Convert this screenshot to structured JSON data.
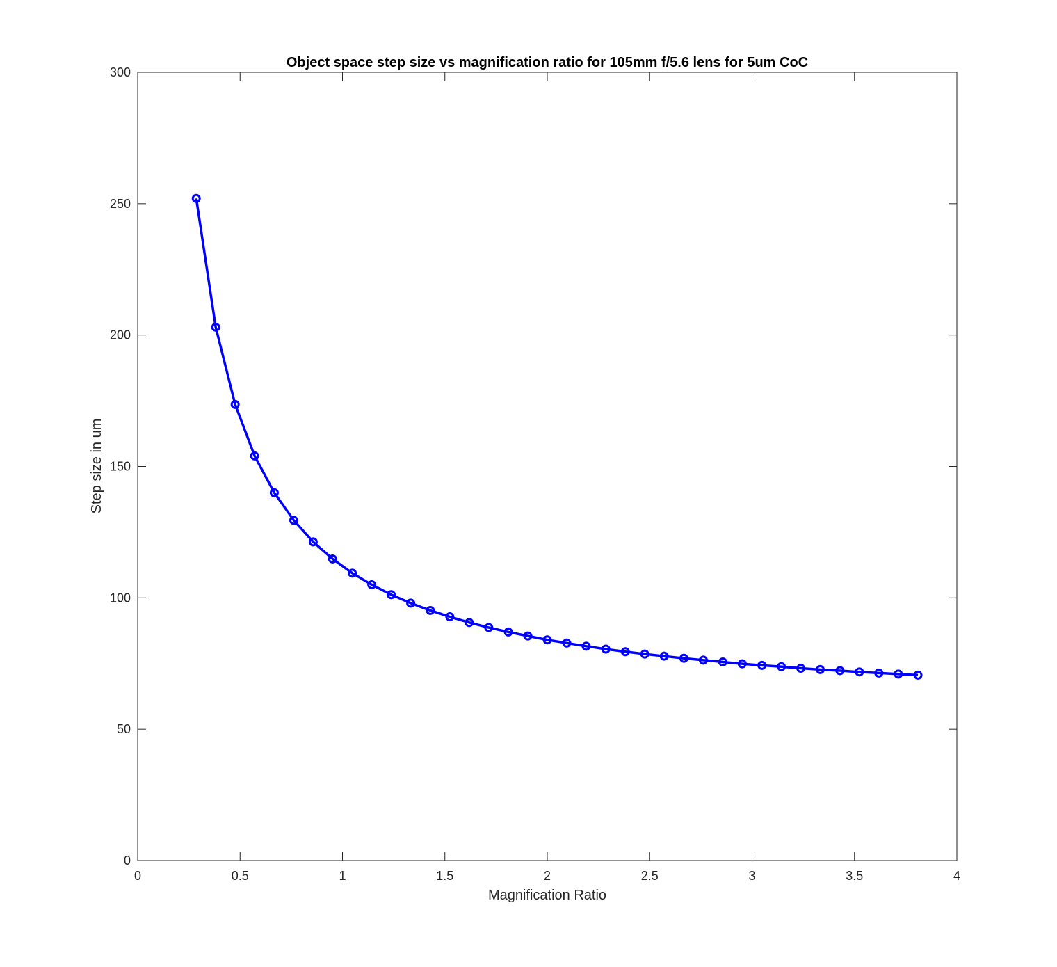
{
  "chart_data": {
    "type": "line",
    "title": "Object space step size vs magnification ratio for 105mm f/5.6 lens for 5um CoC",
    "xlabel": "Magnification Ratio",
    "ylabel": "Step size in um",
    "xlim": [
      0,
      4
    ],
    "ylim": [
      0,
      300
    ],
    "xticks": [
      0,
      0.5,
      1,
      1.5,
      2,
      2.5,
      3,
      3.5,
      4
    ],
    "xtick_labels": [
      "0",
      "0.5",
      "1",
      "1.5",
      "2",
      "2.5",
      "3",
      "3.5",
      "4"
    ],
    "yticks": [
      0,
      50,
      100,
      150,
      200,
      250,
      300
    ],
    "ytick_labels": [
      "0",
      "50",
      "100",
      "150",
      "200",
      "250",
      "300"
    ],
    "grid": false,
    "marker": "circle",
    "color": "#0000ff",
    "series": [
      {
        "x": [
          0.286,
          0.381,
          0.476,
          0.571,
          0.667,
          0.762,
          0.857,
          0.952,
          1.048,
          1.143,
          1.238,
          1.333,
          1.429,
          1.524,
          1.619,
          1.714,
          1.81,
          1.905,
          2.0,
          2.095,
          2.19,
          2.286,
          2.381,
          2.476,
          2.571,
          2.667,
          2.762,
          2.857,
          2.952,
          3.048,
          3.143,
          3.238,
          3.333,
          3.429,
          3.524,
          3.619,
          3.714,
          3.81
        ],
        "y": [
          252.0,
          203.0,
          173.6,
          154.0,
          140.0,
          129.5,
          121.3,
          114.8,
          109.4,
          105.0,
          101.2,
          98.0,
          95.2,
          92.8,
          90.6,
          88.7,
          87.0,
          85.5,
          84.0,
          82.8,
          81.6,
          80.5,
          79.5,
          78.6,
          77.8,
          77.0,
          76.3,
          75.6,
          74.9,
          74.3,
          73.8,
          73.2,
          72.7,
          72.3,
          71.8,
          71.4,
          71.0,
          70.6
        ]
      }
    ]
  }
}
